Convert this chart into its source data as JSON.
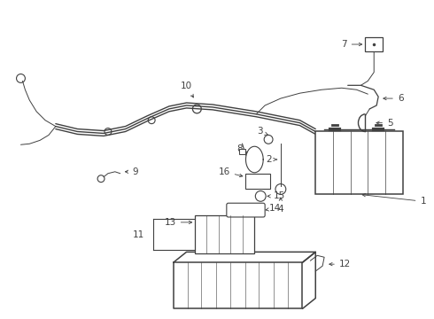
{
  "bg_color": "#ffffff",
  "line_color": "#404040",
  "lw_cable": 1.1,
  "lw_thin": 0.7,
  "lw_med": 0.9
}
